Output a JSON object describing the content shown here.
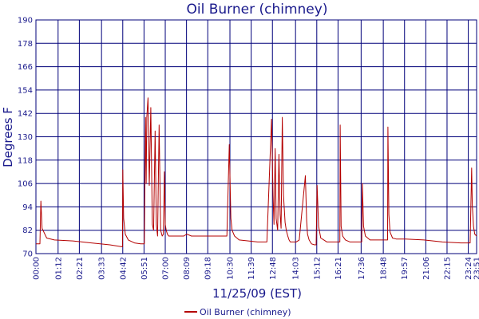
{
  "chart_data": {
    "type": "line",
    "title": "Oil Burner (chimney)",
    "xlabel": "11/25/09 (EST)",
    "ylabel": "Degrees F",
    "ylim": [
      70,
      190
    ],
    "yticks": [
      70,
      82,
      94,
      106,
      118,
      130,
      142,
      154,
      166,
      178,
      190
    ],
    "xlim": [
      "00:00",
      "23:51"
    ],
    "xticks": [
      "00:00",
      "01:12",
      "02:21",
      "03:33",
      "04:42",
      "05:51",
      "07:00",
      "08:09",
      "09:18",
      "10:30",
      "11:39",
      "12:48",
      "14:03",
      "15:12",
      "16:21",
      "17:36",
      "18:48",
      "19:57",
      "21:06",
      "22:15",
      "23:24",
      "23:51"
    ],
    "grid": true,
    "legend_position": "bottom-center",
    "series": [
      {
        "name": "Oil Burner (chimney)",
        "color": "#b40000",
        "x": [
          "00:00",
          "00:13",
          "00:16",
          "00:20",
          "00:35",
          "01:00",
          "02:00",
          "03:00",
          "04:00",
          "04:41",
          "04:42",
          "04:45",
          "04:50",
          "05:00",
          "05:20",
          "05:40",
          "05:52",
          "05:56",
          "05:58",
          "06:00",
          "06:04",
          "06:08",
          "06:13",
          "06:18",
          "06:22",
          "06:27",
          "06:31",
          "06:35",
          "06:40",
          "06:45",
          "06:50",
          "06:54",
          "06:57",
          "07:00",
          "07:03",
          "07:07",
          "07:11",
          "07:15",
          "07:20",
          "07:26",
          "07:30",
          "07:35",
          "07:38",
          "07:42",
          "07:46",
          "07:52",
          "08:00",
          "08:10",
          "08:25",
          "08:36",
          "08:38",
          "08:40",
          "08:44",
          "08:48",
          "09:00",
          "09:30",
          "10:00",
          "10:20",
          "10:28",
          "10:30",
          "10:33",
          "10:37",
          "10:45",
          "11:00",
          "11:30",
          "12:00",
          "12:30",
          "12:45",
          "12:50",
          "12:53",
          "12:57",
          "13:00",
          "13:05",
          "13:09",
          "13:13",
          "13:16",
          "13:20",
          "13:24",
          "13:29",
          "13:33",
          "13:38",
          "13:42",
          "13:46",
          "13:50",
          "13:55",
          "14:00",
          "14:05",
          "14:15",
          "14:35",
          "14:39",
          "14:42",
          "14:47",
          "14:55",
          "15:05",
          "15:10",
          "15:13",
          "15:18",
          "15:25",
          "15:35",
          "15:45",
          "16:00",
          "16:15",
          "16:27",
          "16:28",
          "16:31",
          "16:36",
          "16:45",
          "17:00",
          "17:20",
          "17:38",
          "17:40",
          "17:44",
          "17:50",
          "18:05",
          "18:40",
          "19:02",
          "19:03",
          "19:06",
          "19:10",
          "19:18",
          "19:30",
          "20:00",
          "21:00",
          "22:00",
          "23:00",
          "23:30",
          "23:35",
          "23:37",
          "23:41",
          "23:45",
          "23:51"
        ],
        "values": [
          75,
          75,
          97,
          83,
          78,
          77,
          76.5,
          75.5,
          74.5,
          73.5,
          113,
          88,
          80,
          77,
          75.5,
          75,
          75,
          140,
          106,
          140,
          150,
          105,
          145,
          85,
          82,
          133,
          85,
          79,
          136,
          82,
          79,
          80,
          112,
          85,
          82,
          80,
          79,
          79,
          79,
          79,
          79,
          79,
          79,
          79,
          79,
          79,
          79,
          80,
          79,
          79,
          79,
          79,
          79,
          79,
          79,
          79,
          79,
          79,
          126,
          110,
          88,
          82,
          79,
          77,
          76.5,
          76,
          76,
          139,
          100,
          85,
          124,
          88,
          82,
          121,
          90,
          83,
          140,
          100,
          86,
          82,
          79,
          77,
          76,
          76,
          76,
          76,
          76,
          77,
          110,
          87,
          80,
          77,
          75,
          74.5,
          74.5,
          105,
          84,
          78,
          77,
          76,
          76,
          76,
          76,
          136,
          84,
          79,
          77,
          76,
          76,
          76,
          106,
          84,
          79,
          77,
          77,
          77,
          135,
          90,
          81,
          78,
          77.5,
          77.5,
          77,
          76,
          75.5,
          75.5,
          114,
          95,
          84,
          80,
          79
        ]
      }
    ]
  }
}
